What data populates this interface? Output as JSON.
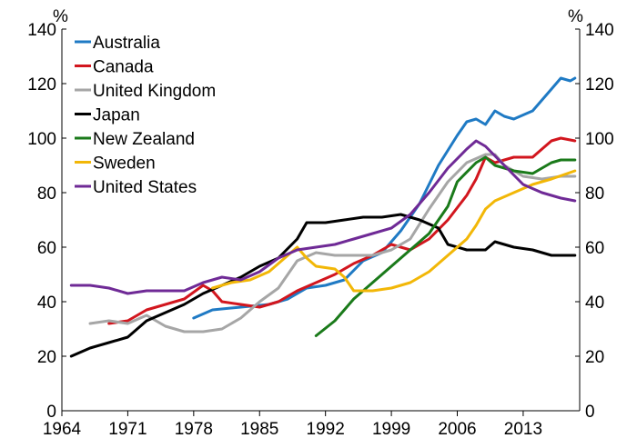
{
  "chart_data": {
    "type": "line",
    "title": "",
    "xlabel": "",
    "ylabel": "%",
    "ylabel_right": "%",
    "xlim": [
      1964,
      2019
    ],
    "ylim": [
      0,
      140
    ],
    "x_ticks": [
      1964,
      1971,
      1978,
      1985,
      1992,
      1999,
      2006,
      2013
    ],
    "y_ticks": [
      0,
      20,
      40,
      60,
      80,
      100,
      120,
      140
    ],
    "legend_position": "top-left",
    "grid": false,
    "series": [
      {
        "name": "Australia",
        "color": "#1f7ac4",
        "points": [
          [
            1978,
            34
          ],
          [
            1980,
            37
          ],
          [
            1983,
            38
          ],
          [
            1986,
            39
          ],
          [
            1988,
            41
          ],
          [
            1990,
            45
          ],
          [
            1992,
            46
          ],
          [
            1994,
            48
          ],
          [
            1996,
            55
          ],
          [
            1998,
            58
          ],
          [
            2000,
            66
          ],
          [
            2002,
            76
          ],
          [
            2004,
            90
          ],
          [
            2006,
            101
          ],
          [
            2007,
            106
          ],
          [
            2008,
            107
          ],
          [
            2009,
            105
          ],
          [
            2010,
            110
          ],
          [
            2011,
            108
          ],
          [
            2012,
            107
          ],
          [
            2014,
            110
          ],
          [
            2016,
            118
          ],
          [
            2017,
            122
          ],
          [
            2018,
            121
          ],
          [
            2018.5,
            122
          ]
        ]
      },
      {
        "name": "Canada",
        "color": "#d2161e",
        "points": [
          [
            1969,
            32
          ],
          [
            1971,
            33
          ],
          [
            1973,
            37
          ],
          [
            1975,
            39
          ],
          [
            1977,
            41
          ],
          [
            1979,
            46
          ],
          [
            1980,
            44
          ],
          [
            1981,
            40
          ],
          [
            1983,
            39
          ],
          [
            1985,
            38
          ],
          [
            1987,
            40
          ],
          [
            1989,
            44
          ],
          [
            1991,
            47
          ],
          [
            1993,
            50
          ],
          [
            1995,
            54
          ],
          [
            1997,
            57
          ],
          [
            1999,
            61
          ],
          [
            2001,
            59
          ],
          [
            2003,
            63
          ],
          [
            2005,
            70
          ],
          [
            2007,
            79
          ],
          [
            2008,
            85
          ],
          [
            2009,
            93
          ],
          [
            2010,
            91
          ],
          [
            2012,
            93
          ],
          [
            2014,
            93
          ],
          [
            2015,
            96
          ],
          [
            2016,
            99
          ],
          [
            2017,
            100
          ],
          [
            2018.5,
            99
          ]
        ]
      },
      {
        "name": "United Kingdom",
        "color": "#a6a6a6",
        "points": [
          [
            1967,
            32
          ],
          [
            1969,
            33
          ],
          [
            1971,
            32
          ],
          [
            1973,
            35
          ],
          [
            1975,
            31
          ],
          [
            1977,
            29
          ],
          [
            1979,
            29
          ],
          [
            1981,
            30
          ],
          [
            1983,
            34
          ],
          [
            1985,
            40
          ],
          [
            1987,
            45
          ],
          [
            1989,
            55
          ],
          [
            1991,
            58
          ],
          [
            1993,
            57
          ],
          [
            1995,
            57
          ],
          [
            1997,
            57
          ],
          [
            1999,
            59
          ],
          [
            2001,
            63
          ],
          [
            2003,
            74
          ],
          [
            2005,
            84
          ],
          [
            2007,
            91
          ],
          [
            2009,
            94
          ],
          [
            2010,
            94
          ],
          [
            2011,
            90
          ],
          [
            2013,
            86
          ],
          [
            2015,
            85
          ],
          [
            2017,
            86
          ],
          [
            2018.5,
            86
          ]
        ]
      },
      {
        "name": "Japan",
        "color": "#000000",
        "points": [
          [
            1965,
            20
          ],
          [
            1967,
            23
          ],
          [
            1969,
            25
          ],
          [
            1971,
            27
          ],
          [
            1973,
            33
          ],
          [
            1975,
            36
          ],
          [
            1977,
            39
          ],
          [
            1979,
            43
          ],
          [
            1981,
            46
          ],
          [
            1983,
            49
          ],
          [
            1985,
            53
          ],
          [
            1987,
            56
          ],
          [
            1989,
            63
          ],
          [
            1990,
            69
          ],
          [
            1992,
            69
          ],
          [
            1994,
            70
          ],
          [
            1996,
            71
          ],
          [
            1998,
            71
          ],
          [
            2000,
            72
          ],
          [
            2002,
            70
          ],
          [
            2004,
            67
          ],
          [
            2005,
            61
          ],
          [
            2007,
            59
          ],
          [
            2009,
            59
          ],
          [
            2010,
            62
          ],
          [
            2012,
            60
          ],
          [
            2014,
            59
          ],
          [
            2016,
            57
          ],
          [
            2018.5,
            57
          ]
        ]
      },
      {
        "name": "New Zealand",
        "color": "#1a7a1a",
        "points": [
          [
            1991,
            27.5
          ],
          [
            1993,
            33
          ],
          [
            1995,
            41
          ],
          [
            1997,
            47
          ],
          [
            1999,
            53
          ],
          [
            2001,
            59
          ],
          [
            2003,
            65
          ],
          [
            2005,
            75
          ],
          [
            2006,
            84
          ],
          [
            2008,
            91
          ],
          [
            2009,
            93
          ],
          [
            2010,
            90
          ],
          [
            2012,
            88
          ],
          [
            2014,
            87
          ],
          [
            2015,
            89
          ],
          [
            2016,
            91
          ],
          [
            2017,
            92
          ],
          [
            2018.5,
            92
          ]
        ]
      },
      {
        "name": "Sweden",
        "color": "#f2b707",
        "points": [
          [
            1980,
            45
          ],
          [
            1982,
            47
          ],
          [
            1984,
            48
          ],
          [
            1986,
            51
          ],
          [
            1988,
            57
          ],
          [
            1989,
            60
          ],
          [
            1990,
            56
          ],
          [
            1991,
            53
          ],
          [
            1993,
            52
          ],
          [
            1994,
            49
          ],
          [
            1995,
            44
          ],
          [
            1997,
            44
          ],
          [
            1999,
            45
          ],
          [
            2001,
            47
          ],
          [
            2003,
            51
          ],
          [
            2005,
            57
          ],
          [
            2007,
            63
          ],
          [
            2008,
            68
          ],
          [
            2009,
            74
          ],
          [
            2010,
            77
          ],
          [
            2012,
            80
          ],
          [
            2014,
            83
          ],
          [
            2016,
            85
          ],
          [
            2018.5,
            88
          ]
        ]
      },
      {
        "name": "United States",
        "color": "#6f2a96",
        "points": [
          [
            1965,
            46
          ],
          [
            1967,
            46
          ],
          [
            1969,
            45
          ],
          [
            1971,
            43
          ],
          [
            1973,
            44
          ],
          [
            1975,
            44
          ],
          [
            1977,
            44
          ],
          [
            1979,
            47
          ],
          [
            1981,
            49
          ],
          [
            1983,
            48
          ],
          [
            1985,
            51
          ],
          [
            1987,
            56
          ],
          [
            1989,
            59
          ],
          [
            1991,
            60
          ],
          [
            1993,
            61
          ],
          [
            1995,
            63
          ],
          [
            1997,
            65
          ],
          [
            1999,
            67
          ],
          [
            2001,
            72
          ],
          [
            2003,
            80
          ],
          [
            2005,
            89
          ],
          [
            2007,
            96
          ],
          [
            2008,
            99
          ],
          [
            2009,
            97
          ],
          [
            2011,
            90
          ],
          [
            2013,
            83
          ],
          [
            2015,
            80
          ],
          [
            2017,
            78
          ],
          [
            2018.5,
            77
          ]
        ]
      }
    ]
  }
}
